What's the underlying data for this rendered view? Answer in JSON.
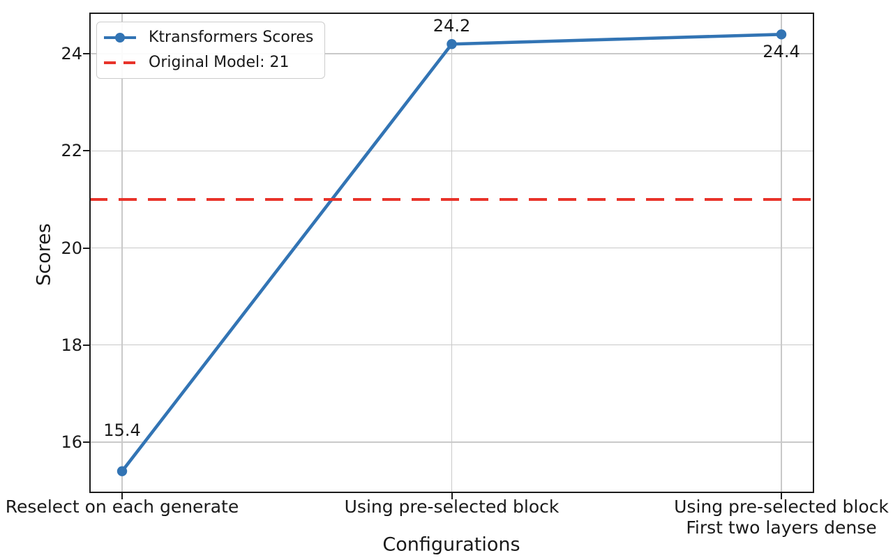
{
  "chart_data": {
    "type": "line",
    "title": "",
    "xlabel": "Configurations",
    "ylabel": "Scores",
    "categories": [
      "Reselect on each generate",
      "Using pre-selected block",
      "Using pre-selected block\nFirst two layers dense"
    ],
    "series": [
      {
        "name": "Ktransformers Scores",
        "values": [
          15.4,
          24.2,
          24.4
        ],
        "color": "#3274b4",
        "marker": "circle",
        "style": "solid"
      }
    ],
    "reference_line": {
      "name": "Original Model: 21",
      "value": 21,
      "color": "#e8332a",
      "style": "dashed"
    },
    "data_labels": [
      "15.4",
      "24.2",
      "24.4"
    ],
    "yticks": [
      16,
      18,
      20,
      22,
      24
    ],
    "ylim": [
      14.95,
      24.85
    ],
    "grid": true,
    "legend_position": "upper-left"
  },
  "xtick_lines": [
    {
      "line1": "Reselect on each generate",
      "line2": ""
    },
    {
      "line1": "Using pre-selected block",
      "line2": ""
    },
    {
      "line1": "Using pre-selected block",
      "line2": "First two layers dense"
    }
  ]
}
